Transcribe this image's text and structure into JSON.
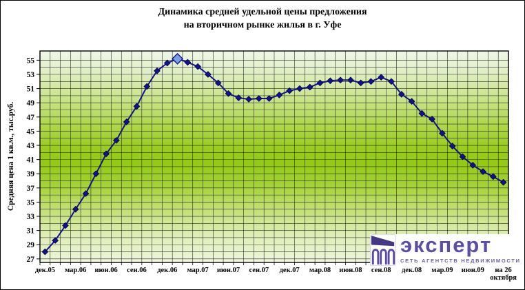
{
  "title": {
    "line1": "Динамика средней удельной цены предложения",
    "line2": "на вторичном рынке жилья в г. Уфе"
  },
  "chart_data": {
    "type": "line",
    "title": "Динамика средней удельной цены предложения на вторичном рынке жилья в г. Уфе",
    "ylabel": "Средняя цена 1 кв.м., тыс.руб.",
    "ylim": [
      26.5,
      56.3
    ],
    "grid": true,
    "x_frequency": "monthly",
    "values": [
      28.0,
      29.6,
      31.7,
      34.0,
      36.2,
      39.0,
      41.8,
      43.7,
      46.3,
      48.5,
      51.3,
      53.5,
      54.6,
      55.2,
      54.7,
      54.1,
      53.0,
      51.8,
      50.3,
      49.7,
      49.5,
      49.6,
      49.6,
      50.1,
      50.7,
      51.0,
      51.2,
      51.8,
      52.1,
      52.2,
      52.2,
      51.8,
      52.0,
      52.6,
      52.0,
      50.2,
      49.2,
      47.5,
      46.7,
      44.7,
      42.9,
      41.4,
      40.2,
      39.3,
      38.6,
      37.8
    ],
    "highlight_index": 13,
    "y_ticks": [
      55,
      53,
      51,
      49,
      47,
      45,
      43,
      41,
      39,
      37,
      35,
      33,
      31,
      29,
      27
    ],
    "x_tick_labels": [
      {
        "index": 0,
        "label": "дек.05"
      },
      {
        "index": 3,
        "label": "мар.06"
      },
      {
        "index": 6,
        "label": "июн.06"
      },
      {
        "index": 9,
        "label": "сен.06"
      },
      {
        "index": 12,
        "label": "дек.06"
      },
      {
        "index": 15,
        "label": "мар.07"
      },
      {
        "index": 18,
        "label": "июн.07"
      },
      {
        "index": 21,
        "label": "сен.07"
      },
      {
        "index": 24,
        "label": "дек.07"
      },
      {
        "index": 27,
        "label": "мар.08"
      },
      {
        "index": 30,
        "label": "июн.08"
      },
      {
        "index": 33,
        "label": "сен.08"
      },
      {
        "index": 36,
        "label": "дек.08"
      },
      {
        "index": 39,
        "label": "мар.09"
      },
      {
        "index": 42,
        "label": "июн.09"
      },
      {
        "index": 45,
        "label": "на 26\nоктября"
      }
    ]
  },
  "colors": {
    "line": "#12128c",
    "marker": "#12128c",
    "marker_edge": "#00004a",
    "highlight_fill": "#7d9de8",
    "grid": "#2b2b2b",
    "plot_border": "#000000",
    "plot_gradient": [
      [
        "0%",
        "#f0f7e6"
      ],
      [
        "8%",
        "#e3f0cc"
      ],
      [
        "20%",
        "#cfe696"
      ],
      [
        "33%",
        "#b2d955"
      ],
      [
        "45%",
        "#9bcd20"
      ],
      [
        "53%",
        "#94ca12"
      ],
      [
        "62%",
        "#a0d130"
      ],
      [
        "74%",
        "#c0de6e"
      ],
      [
        "86%",
        "#dcedb0"
      ],
      [
        "100%",
        "#eef6dc"
      ]
    ],
    "logo_purple": "#5d4da6",
    "logo_dark_purple": "#453786",
    "logo_tagline": "#6e5cb2"
  },
  "logo": {
    "brand": "эксперт",
    "tagline": "СЕТЬ АГЕНТСТВ НЕДВИЖИМОСТИ"
  }
}
